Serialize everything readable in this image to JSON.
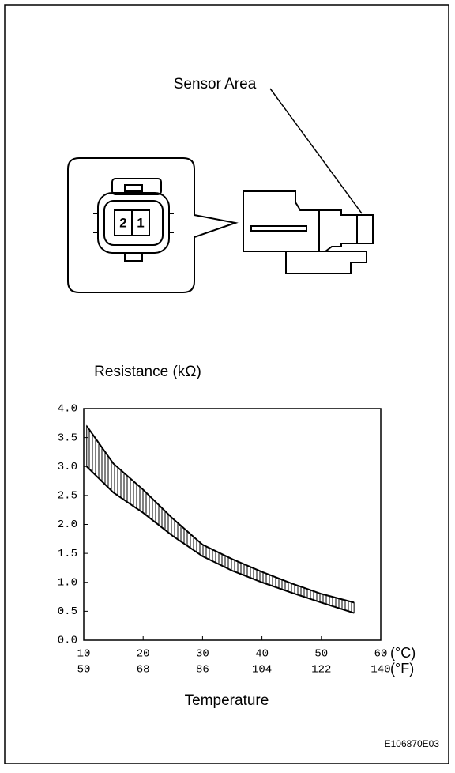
{
  "diagram": {
    "label": "Sensor Area",
    "pins": [
      "2",
      "1"
    ]
  },
  "code": "E106870E03",
  "chart_data": {
    "type": "line",
    "ylabel": "Resistance (kΩ)",
    "xlabel": "Temperature",
    "xunit": "(°C)",
    "x2unit": "(°F)",
    "x": [
      10.5,
      15,
      20,
      25,
      30,
      35,
      40,
      45,
      50,
      55.5
    ],
    "series": [
      {
        "color": "#000000",
        "values": [
          3.7,
          3.05,
          2.6,
          2.1,
          1.65,
          1.4,
          1.18,
          0.98,
          0.8,
          0.65
        ]
      },
      {
        "color": "#000000",
        "values": [
          3.0,
          2.55,
          2.2,
          1.8,
          1.45,
          1.2,
          1.0,
          0.82,
          0.65,
          0.47
        ]
      }
    ],
    "band_hatch": true,
    "xlim": [
      10,
      60
    ],
    "xticks": [
      10,
      20,
      30,
      40,
      50,
      60
    ],
    "x2lim": [
      50,
      140
    ],
    "x2ticks": [
      50,
      68,
      86,
      104,
      122,
      140
    ],
    "ylim": [
      0,
      4
    ],
    "yticks": [
      {
        "value": 0,
        "label": "0.0"
      },
      {
        "value": 0.5,
        "label": "0.5"
      },
      {
        "value": 1,
        "label": "1.0"
      },
      {
        "value": 1.5,
        "label": "1.5"
      },
      {
        "value": 2,
        "label": "2.0"
      },
      {
        "value": 2.5,
        "label": "2.5"
      },
      {
        "value": 3,
        "label": "3.0"
      },
      {
        "value": 3.5,
        "label": "3.5"
      },
      {
        "value": 4,
        "label": "4.0"
      }
    ]
  }
}
